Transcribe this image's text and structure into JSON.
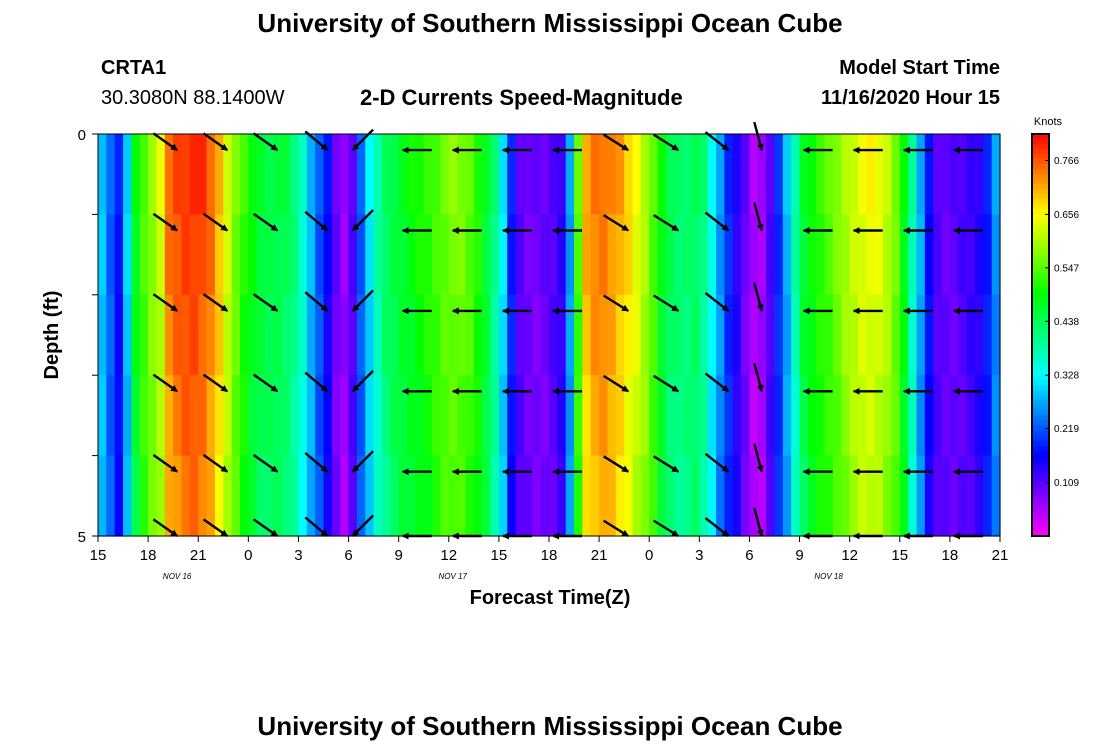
{
  "header": {
    "title": "University of Southern Mississippi Ocean Cube",
    "station_id": "CRTA1",
    "coords": "30.3080N 88.1400W",
    "chart_title": "2-D Currents Speed-Magnitude",
    "model_label": "Model Start Time",
    "model_time": "11/16/2020 Hour 15"
  },
  "footer": {
    "title": "University of Southern Mississippi Ocean Cube"
  },
  "chart_data": {
    "type": "heatmap",
    "title": "2-D Currents Speed-Magnitude",
    "xlabel": "Forecast Time(Z)",
    "ylabel": "Depth (ft)",
    "ylim": [
      0,
      5
    ],
    "y_ticks": [
      0,
      5
    ],
    "x_ticks": [
      "15",
      "18",
      "21",
      "0",
      "3",
      "6",
      "9",
      "12",
      "15",
      "18",
      "21",
      "0",
      "3",
      "6",
      "9",
      "12",
      "15",
      "18",
      "21"
    ],
    "date_labels": [
      {
        "text": "NOV 16",
        "hour": 4.5
      },
      {
        "text": "NOV 17",
        "hour": 21
      },
      {
        "text": "NOV 18",
        "hour": 43.5
      }
    ],
    "x_range_hours": [
      0,
      54
    ],
    "colorbar": {
      "unit": "Knots",
      "min": 0,
      "max": 0.82,
      "ticks": [
        "0.766",
        "0.656",
        "0.547",
        "0.438",
        "0.328",
        "0.219",
        "0.109"
      ]
    },
    "speed_profile": [
      {
        "h": 0,
        "v": 0.33
      },
      {
        "h": 1,
        "v": 0.2
      },
      {
        "h": 1.5,
        "v": 0.15
      },
      {
        "h": 2,
        "v": 0.45
      },
      {
        "h": 3,
        "v": 0.58
      },
      {
        "h": 3.7,
        "v": 0.62
      },
      {
        "h": 4.2,
        "v": 0.75
      },
      {
        "h": 5,
        "v": 0.79
      },
      {
        "h": 6,
        "v": 0.8
      },
      {
        "h": 7,
        "v": 0.74
      },
      {
        "h": 8,
        "v": 0.6
      },
      {
        "h": 9,
        "v": 0.5
      },
      {
        "h": 10,
        "v": 0.45
      },
      {
        "h": 11,
        "v": 0.46
      },
      {
        "h": 12,
        "v": 0.4
      },
      {
        "h": 13,
        "v": 0.25
      },
      {
        "h": 13.5,
        "v": 0.2
      },
      {
        "h": 14.2,
        "v": 0.1
      },
      {
        "h": 15,
        "v": 0.05
      },
      {
        "h": 15.5,
        "v": 0.18
      },
      {
        "h": 16,
        "v": 0.28
      },
      {
        "h": 17,
        "v": 0.42
      },
      {
        "h": 18,
        "v": 0.47
      },
      {
        "h": 19,
        "v": 0.5
      },
      {
        "h": 20,
        "v": 0.53
      },
      {
        "h": 21,
        "v": 0.58
      },
      {
        "h": 22,
        "v": 0.57
      },
      {
        "h": 23,
        "v": 0.5
      },
      {
        "h": 24,
        "v": 0.38
      },
      {
        "h": 24.5,
        "v": 0.25
      },
      {
        "h": 25,
        "v": 0.12
      },
      {
        "h": 26,
        "v": 0.09
      },
      {
        "h": 27,
        "v": 0.1
      },
      {
        "h": 28,
        "v": 0.15
      },
      {
        "h": 28.5,
        "v": 0.4
      },
      {
        "h": 29,
        "v": 0.7
      },
      {
        "h": 30,
        "v": 0.76
      },
      {
        "h": 31,
        "v": 0.73
      },
      {
        "h": 32,
        "v": 0.67
      },
      {
        "h": 33,
        "v": 0.59
      },
      {
        "h": 34,
        "v": 0.45
      },
      {
        "h": 35,
        "v": 0.42
      },
      {
        "h": 36,
        "v": 0.45
      },
      {
        "h": 37,
        "v": 0.3
      },
      {
        "h": 37.7,
        "v": 0.2
      },
      {
        "h": 38.5,
        "v": 0.12
      },
      {
        "h": 39.5,
        "v": 0.03
      },
      {
        "h": 40.5,
        "v": 0.15
      },
      {
        "h": 41,
        "v": 0.25
      },
      {
        "h": 41.5,
        "v": 0.32
      },
      {
        "h": 42,
        "v": 0.45
      },
      {
        "h": 43,
        "v": 0.52
      },
      {
        "h": 44,
        "v": 0.56
      },
      {
        "h": 45,
        "v": 0.62
      },
      {
        "h": 46,
        "v": 0.66
      },
      {
        "h": 47,
        "v": 0.64
      },
      {
        "h": 48,
        "v": 0.55
      },
      {
        "h": 48.5,
        "v": 0.44
      },
      {
        "h": 49,
        "v": 0.33
      },
      {
        "h": 49.5,
        "v": 0.22
      },
      {
        "h": 50,
        "v": 0.12
      },
      {
        "h": 51,
        "v": 0.1
      },
      {
        "h": 52,
        "v": 0.12
      },
      {
        "h": 53,
        "v": 0.15
      },
      {
        "h": 54,
        "v": 0.3
      }
    ],
    "arrow_depths_ft": [
      0.2,
      1.2,
      2.2,
      3.2,
      4.2,
      5.0
    ],
    "arrow_columns": [
      {
        "hour": 4.5,
        "angle_deg": 35
      },
      {
        "hour": 7.5,
        "angle_deg": 35
      },
      {
        "hour": 10.5,
        "angle_deg": 35
      },
      {
        "hour": 13.5,
        "angle_deg": 40
      },
      {
        "hour": 15,
        "angle_deg": 135
      },
      {
        "hour": 18,
        "angle_deg": 180
      },
      {
        "hour": 21,
        "angle_deg": 180
      },
      {
        "hour": 24,
        "angle_deg": 180
      },
      {
        "hour": 27,
        "angle_deg": 180
      },
      {
        "hour": 31.5,
        "angle_deg": 32
      },
      {
        "hour": 34.5,
        "angle_deg": 32
      },
      {
        "hour": 37.5,
        "angle_deg": 38
      },
      {
        "hour": 39.5,
        "angle_deg": 75
      },
      {
        "hour": 42,
        "angle_deg": 180
      },
      {
        "hour": 45,
        "angle_deg": 180
      },
      {
        "hour": 48,
        "angle_deg": 180
      },
      {
        "hour": 51,
        "angle_deg": 180
      }
    ]
  }
}
